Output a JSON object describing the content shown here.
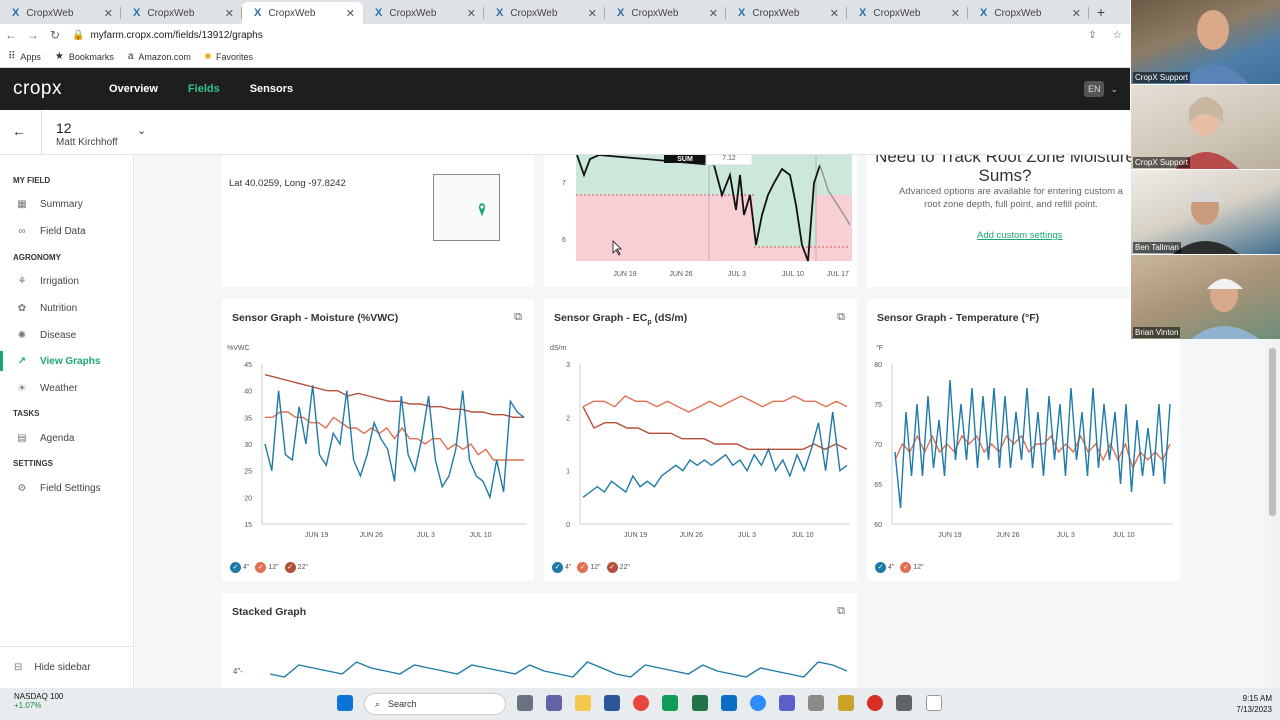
{
  "browser": {
    "tabs": [
      "CropxWeb",
      "CropxWeb",
      "CropxWeb",
      "CropxWeb",
      "CropxWeb",
      "CropxWeb",
      "CropxWeb",
      "CropxWeb",
      "CropxWeb"
    ],
    "url": "myfarm.cropx.com/fields/13912/graphs",
    "bookmarks": [
      "Apps",
      "Bookmarks",
      "Amazon.com",
      "Favorites"
    ]
  },
  "app": {
    "logo": "cropx",
    "nav": [
      "Overview",
      "Fields",
      "Sensors"
    ],
    "language": "EN"
  },
  "field": {
    "id": "12",
    "owner": "Matt Kirchhoff"
  },
  "sidebar": {
    "sections": [
      "MY FIELD",
      "AGRONOMY",
      "TASKS",
      "SETTINGS"
    ],
    "items": [
      "Summary",
      "Field Data",
      "Irrigation",
      "Nutrition",
      "Disease",
      "View Graphs",
      "Weather",
      "Agenda",
      "Field Settings"
    ],
    "hide": "Hide sidebar"
  },
  "location": {
    "coords": "Lat 40.0259, Long -97.8242"
  },
  "top_chart": {
    "tooltip_label": "SUM",
    "tooltip_value": "7.12",
    "y_ticks": [
      "7",
      "6"
    ],
    "x_ticks": [
      "JUN 19",
      "JUN 26",
      "JUL 3",
      "JUL 10",
      "JUL 17"
    ]
  },
  "promo": {
    "title": "Need to Track Root Zone Moisture Sums?",
    "text": "Advanced options are available for entering custom a root zone depth, full point, and refill point.",
    "link": "Add custom settings"
  },
  "cards": {
    "moisture": {
      "title_main": "Sensor Graph - Moisture (%VWC)",
      "unit": "%VWC"
    },
    "ec": {
      "title_pre": "Sensor Graph - EC",
      "title_sub": "p",
      "title_post": " (dS/m)",
      "unit": "dS/m"
    },
    "temp": {
      "title_main": "Sensor Graph - Temperature (°F)",
      "unit": "°F"
    },
    "stacked": {
      "title_main": "Stacked Graph",
      "row_label": "4\"-"
    }
  },
  "legend": {
    "d4": "4\"",
    "d12": "12\"",
    "d22": "22\""
  },
  "colors": {
    "blue": "#1f7aa8",
    "orange": "#e0704f",
    "red": "#b5503b",
    "green": "#1aa774"
  },
  "chart_data": [
    {
      "type": "line",
      "title": "Sensor Graph - Moisture (%VWC)",
      "ylabel": "%VWC",
      "ylim": [
        15,
        45
      ],
      "y_ticks": [
        45,
        40,
        35,
        30,
        25,
        20,
        15
      ],
      "x_ticks": [
        "JUN 19",
        "JUN 26",
        "JUL 3",
        "JUL 10"
      ],
      "series": [
        {
          "name": "4\"",
          "color": "#1f7aa8",
          "values": [
            30,
            25,
            40,
            28,
            27,
            37,
            30,
            41,
            28,
            26,
            32,
            30,
            40,
            27,
            24,
            28,
            34,
            31,
            29,
            23,
            39,
            28,
            25,
            31,
            39,
            27,
            22,
            24,
            29,
            40,
            27,
            24,
            23,
            20,
            27,
            21,
            38,
            36,
            35
          ]
        },
        {
          "name": "12\"",
          "color": "#e0704f",
          "values": [
            35,
            35,
            36,
            36,
            35,
            35,
            34,
            34,
            33,
            35,
            34,
            33,
            33,
            32,
            33,
            32,
            33,
            31,
            33,
            31,
            31,
            30,
            31,
            31,
            29,
            30,
            29,
            30,
            28,
            29,
            27,
            27,
            27,
            27,
            27
          ]
        },
        {
          "name": "22\"",
          "color": "#b5503b",
          "values": [
            43,
            42.5,
            42,
            41.5,
            41,
            40.5,
            40,
            40,
            39,
            39.5,
            39,
            38.5,
            38,
            38,
            37.5,
            37.5,
            37,
            37,
            36.5,
            36.5,
            36,
            36,
            35.5,
            35.5,
            35,
            35
          ]
        }
      ]
    },
    {
      "type": "line",
      "title": "Sensor Graph - ECp (dS/m)",
      "ylabel": "dS/m",
      "ylim": [
        0,
        3
      ],
      "y_ticks": [
        3,
        2,
        1,
        0
      ],
      "x_ticks": [
        "JUN 19",
        "JUN 26",
        "JUL 3",
        "JUL 10"
      ],
      "series": [
        {
          "name": "4\"",
          "color": "#1f7aa8",
          "values": [
            0.5,
            0.6,
            0.7,
            0.6,
            0.8,
            0.7,
            0.6,
            0.9,
            0.7,
            0.8,
            0.7,
            0.9,
            1.0,
            1.1,
            1.0,
            1.2,
            1.1,
            1.2,
            1.1,
            1.2,
            1.3,
            1.1,
            1.2,
            1.0,
            1.3,
            1.1,
            1.4,
            1.0,
            1.2,
            0.9,
            1.3,
            1.0,
            1.4,
            1.9,
            1.0,
            2.1,
            1.0,
            1.1
          ]
        },
        {
          "name": "12\"",
          "color": "#e0704f",
          "values": [
            2.2,
            2.3,
            2.3,
            2.2,
            2.4,
            2.3,
            2.3,
            2.2,
            2.3,
            2.2,
            2.1,
            2.2,
            2.3,
            2.2,
            2.3,
            2.4,
            2.3,
            2.2,
            2.3,
            2.3,
            2.4,
            2.3,
            2.3,
            2.2,
            2.3,
            2.2
          ]
        },
        {
          "name": "22\"",
          "color": "#b5503b",
          "values": [
            2.2,
            1.8,
            1.9,
            1.9,
            1.8,
            1.8,
            1.7,
            1.7,
            1.7,
            1.6,
            1.6,
            1.6,
            1.5,
            1.5,
            1.5,
            1.4,
            1.4,
            1.4,
            1.4,
            1.4,
            1.4,
            1.5,
            1.4,
            1.5,
            1.4
          ]
        }
      ]
    },
    {
      "type": "line",
      "title": "Sensor Graph - Temperature (°F)",
      "ylabel": "°F",
      "ylim": [
        60,
        80
      ],
      "y_ticks": [
        80,
        75,
        70,
        65,
        60
      ],
      "x_ticks": [
        "JUN 19",
        "JUN 26",
        "JUL 3",
        "JUL 10"
      ],
      "series": [
        {
          "name": "4\"",
          "color": "#1f7aa8",
          "values": [
            69,
            62,
            74,
            66,
            75,
            66,
            76,
            67,
            73,
            66,
            78,
            68,
            75,
            68,
            77,
            67,
            76,
            68,
            77,
            67,
            76,
            67,
            74,
            68,
            77,
            67,
            74,
            66,
            76,
            68,
            75,
            66,
            77,
            68,
            74,
            66,
            77,
            67,
            75,
            68,
            74,
            65,
            75,
            64,
            73,
            66,
            72,
            66,
            75,
            65,
            75
          ]
        },
        {
          "name": "12\"",
          "color": "#e0704f",
          "values": [
            68,
            70,
            69,
            71,
            69,
            71,
            69,
            70,
            69,
            71,
            70,
            71,
            69,
            70,
            69,
            71,
            70,
            71,
            69,
            70,
            70,
            71,
            69,
            70,
            69,
            71,
            69,
            70,
            68,
            70,
            68,
            70,
            67,
            69,
            68,
            69,
            68,
            70
          ]
        }
      ]
    },
    {
      "type": "line",
      "title": "Stacked Graph",
      "series": [
        {
          "name": "4\"",
          "color": "#1f7aa8",
          "values": [
            0.3,
            0.2,
            0.6,
            0.5,
            0.4,
            0.3,
            0.7,
            0.5,
            0.4,
            0.3,
            0.6,
            0.5,
            0.4,
            0.3,
            0.6,
            0.5,
            0.4,
            0.3,
            0.6,
            0.4,
            0.3,
            0.2,
            0.7,
            0.5,
            0.3,
            0.2,
            0.6,
            0.5,
            0.4,
            0.3,
            0.6,
            0.4,
            0.3,
            0.2,
            0.5,
            0.4,
            0.3,
            0.2,
            0.7,
            0.6,
            0.4
          ]
        }
      ]
    }
  ],
  "taskbar": {
    "ticker_name": "NASDAQ 100",
    "ticker_value": "+1.07%",
    "search": "Search",
    "time": "9:15 AM",
    "date": "7/13/2023"
  },
  "participants": [
    "CropX Support",
    "CropX Support",
    "Ben Tallman",
    "Brian Vinton"
  ]
}
